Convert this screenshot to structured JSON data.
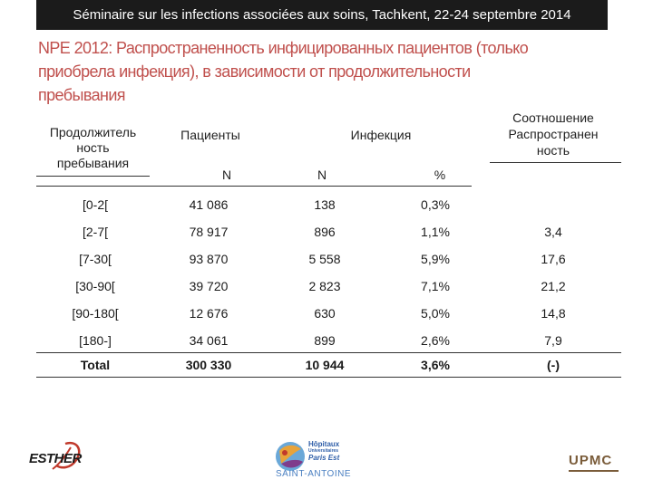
{
  "header": {
    "text": "Séminaire sur les infections associées aux soins, Tachkent, 22-24 septembre 2014"
  },
  "title": {
    "line1": "NPE 2012: Распространенность инфицированных пациентов (только",
    "line2": "приобрела инфекция), в зависимости от продолжительности",
    "line3": "пребывания"
  },
  "table": {
    "col_duration": [
      "Продолжитель",
      "ность",
      "пребывания"
    ],
    "col_patients": "Пациенты",
    "col_infection": "Инфекция",
    "col_ratio": [
      "Соотношение",
      "Распространен",
      "ность"
    ],
    "sub_n1": "N",
    "sub_n2": "N",
    "sub_pct": "%",
    "rows": [
      {
        "duration": "[0-2[",
        "patients": "41 086",
        "inf_n": "138",
        "inf_pct": "0,3%",
        "ratio": ""
      },
      {
        "duration": "[2-7[",
        "patients": "78 917",
        "inf_n": "896",
        "inf_pct": "1,1%",
        "ratio": "3,4"
      },
      {
        "duration": "[7-30[",
        "patients": "93 870",
        "inf_n": "5 558",
        "inf_pct": "5,9%",
        "ratio": "17,6"
      },
      {
        "duration": "[30-90[",
        "patients": "39 720",
        "inf_n": "2 823",
        "inf_pct": "7,1%",
        "ratio": "21,2"
      },
      {
        "duration": "[90-180[",
        "patients": "12 676",
        "inf_n": "630",
        "inf_pct": "5,0%",
        "ratio": "14,8"
      },
      {
        "duration": "[180-]",
        "patients": "34 061",
        "inf_n": "899",
        "inf_pct": "2,6%",
        "ratio": "7,9"
      }
    ],
    "total": {
      "duration": "Total",
      "patients": "300 330",
      "inf_n": "10 944",
      "inf_pct": "3,6%",
      "ratio": "(-)"
    }
  },
  "logos": {
    "esther": "ESTHER",
    "hopitaux_line1": "Hôpitaux",
    "hopitaux_line2": "Universitaires",
    "hopitaux_line3": "Paris Est",
    "saint_antoine": "SAINT-ANTOINE",
    "upmc": "UPMC"
  },
  "colors": {
    "title": "#c0504d",
    "header_bg": "#1b1b1b",
    "saint_antoine": "#4a7fc1"
  }
}
